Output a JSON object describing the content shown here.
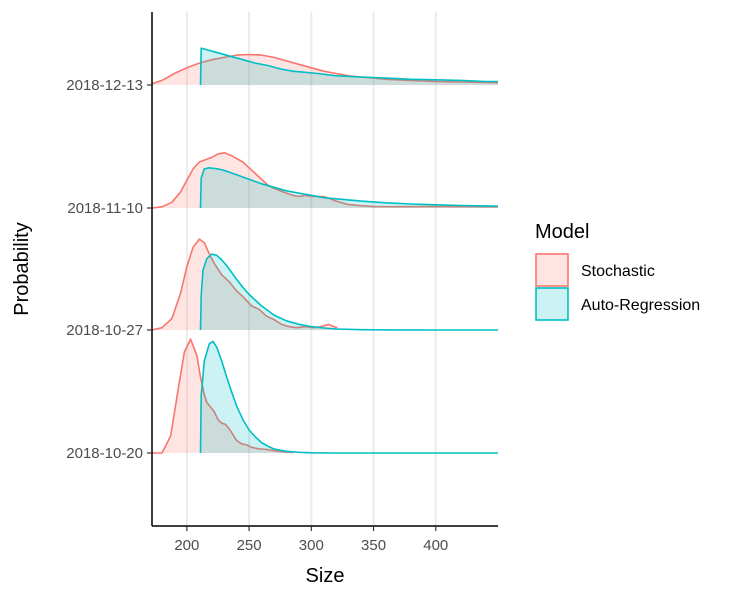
{
  "chart_data": {
    "type": "area",
    "subtype": "ridgeline-density",
    "xlabel": "Size",
    "ylabel": "Probability",
    "xlim": [
      172,
      450
    ],
    "x_ticks": [
      200,
      250,
      300,
      350,
      400
    ],
    "categories": [
      "2018-10-20",
      "2018-10-27",
      "2018-11-10",
      "2018-12-13"
    ],
    "grid": "vertical-major",
    "legend": {
      "title": "Model",
      "position": "right",
      "entries": [
        {
          "label": "Stochastic",
          "color": "#F8766D"
        },
        {
          "label": "Auto-Regression",
          "color": "#00BFC4"
        }
      ]
    },
    "series": [
      {
        "name": "Stochastic",
        "color": "#F8766D",
        "ridges": [
          {
            "category": "2018-10-20",
            "points": [
              [
                172,
                0
              ],
              [
                180,
                0
              ],
              [
                187,
                0.15
              ],
              [
                193,
                0.55
              ],
              [
                198,
                0.88
              ],
              [
                203,
                0.99
              ],
              [
                208,
                0.85
              ],
              [
                211,
                0.66
              ],
              [
                214,
                0.51
              ],
              [
                216,
                0.44
              ],
              [
                219,
                0.4
              ],
              [
                222,
                0.36
              ],
              [
                225,
                0.29
              ],
              [
                228,
                0.26
              ],
              [
                231,
                0.25
              ],
              [
                234,
                0.21
              ],
              [
                237,
                0.16
              ],
              [
                240,
                0.11
              ],
              [
                244,
                0.08
              ],
              [
                248,
                0.07
              ],
              [
                252,
                0.05
              ],
              [
                256,
                0.04
              ],
              [
                260,
                0.035
              ],
              [
                265,
                0.03
              ],
              [
                270,
                0.02
              ],
              [
                278,
                0.01
              ],
              [
                285,
                0.005
              ]
            ]
          },
          {
            "category": "2018-10-27",
            "points": [
              [
                172,
                0
              ],
              [
                180,
                0.02
              ],
              [
                188,
                0.1
              ],
              [
                195,
                0.32
              ],
              [
                200,
                0.55
              ],
              [
                205,
                0.72
              ],
              [
                210,
                0.79
              ],
              [
                214,
                0.76
              ],
              [
                218,
                0.66
              ],
              [
                222,
                0.58
              ],
              [
                228,
                0.48
              ],
              [
                234,
                0.42
              ],
              [
                240,
                0.34
              ],
              [
                246,
                0.28
              ],
              [
                252,
                0.21
              ],
              [
                258,
                0.18
              ],
              [
                264,
                0.12
              ],
              [
                270,
                0.09
              ],
              [
                276,
                0.05
              ],
              [
                282,
                0.03
              ],
              [
                288,
                0.02
              ],
              [
                295,
                0.03
              ],
              [
                302,
                0.02
              ],
              [
                308,
                0.03
              ],
              [
                314,
                0.05
              ],
              [
                318,
                0.03
              ],
              [
                321,
                0.02
              ]
            ]
          },
          {
            "category": "2018-11-10",
            "points": [
              [
                172,
                0
              ],
              [
                180,
                0.01
              ],
              [
                188,
                0.05
              ],
              [
                195,
                0.14
              ],
              [
                200,
                0.24
              ],
              [
                205,
                0.34
              ],
              [
                210,
                0.4
              ],
              [
                215,
                0.42
              ],
              [
                220,
                0.44
              ],
              [
                225,
                0.47
              ],
              [
                230,
                0.48
              ],
              [
                235,
                0.46
              ],
              [
                240,
                0.43
              ],
              [
                245,
                0.4
              ],
              [
                250,
                0.35
              ],
              [
                255,
                0.3
              ],
              [
                260,
                0.25
              ],
              [
                265,
                0.2
              ],
              [
                270,
                0.17
              ],
              [
                275,
                0.15
              ],
              [
                280,
                0.13
              ],
              [
                285,
                0.11
              ],
              [
                290,
                0.1
              ],
              [
                295,
                0.11
              ],
              [
                300,
                0.1
              ],
              [
                305,
                0.1
              ],
              [
                310,
                0.1
              ],
              [
                315,
                0.08
              ],
              [
                320,
                0.06
              ],
              [
                330,
                0.03
              ],
              [
                340,
                0.02
              ],
              [
                350,
                0.012
              ],
              [
                370,
                0.011
              ],
              [
                390,
                0.012
              ],
              [
                410,
                0.012
              ],
              [
                430,
                0.011
              ],
              [
                450,
                0.01
              ]
            ]
          },
          {
            "category": "2018-12-13",
            "points": [
              [
                172,
                0.01
              ],
              [
                180,
                0.04
              ],
              [
                190,
                0.1
              ],
              [
                200,
                0.15
              ],
              [
                210,
                0.19
              ],
              [
                220,
                0.22
              ],
              [
                230,
                0.24
              ],
              [
                240,
                0.26
              ],
              [
                250,
                0.265
              ],
              [
                260,
                0.26
              ],
              [
                270,
                0.24
              ],
              [
                280,
                0.21
              ],
              [
                290,
                0.18
              ],
              [
                300,
                0.15
              ],
              [
                310,
                0.12
              ],
              [
                320,
                0.1
              ],
              [
                330,
                0.08
              ],
              [
                340,
                0.07
              ],
              [
                350,
                0.06
              ],
              [
                360,
                0.05
              ],
              [
                370,
                0.045
              ],
              [
                380,
                0.04
              ],
              [
                390,
                0.035
              ],
              [
                400,
                0.03
              ],
              [
                410,
                0.028
              ],
              [
                420,
                0.026
              ],
              [
                430,
                0.024
              ],
              [
                440,
                0.022
              ],
              [
                450,
                0.02
              ]
            ]
          }
        ]
      },
      {
        "name": "Auto-Regression",
        "color": "#00BFC4",
        "ridges": [
          {
            "category": "2018-10-20",
            "points": [
              [
                211,
                0
              ],
              [
                211.5,
                0.5
              ],
              [
                214,
                0.8
              ],
              [
                218,
                0.95
              ],
              [
                221,
                0.97
              ],
              [
                224,
                0.92
              ],
              [
                228,
                0.8
              ],
              [
                232,
                0.66
              ],
              [
                236,
                0.53
              ],
              [
                240,
                0.41
              ],
              [
                245,
                0.29
              ],
              [
                250,
                0.2
              ],
              [
                255,
                0.14
              ],
              [
                260,
                0.09
              ],
              [
                265,
                0.06
              ],
              [
                270,
                0.035
              ],
              [
                280,
                0.015
              ],
              [
                290,
                0.006
              ],
              [
                300,
                0.002
              ],
              [
                320,
                0
              ],
              [
                450,
                0
              ]
            ]
          },
          {
            "category": "2018-10-27",
            "points": [
              [
                211,
                0
              ],
              [
                211.5,
                0.3
              ],
              [
                213,
                0.52
              ],
              [
                216,
                0.62
              ],
              [
                220,
                0.66
              ],
              [
                224,
                0.65
              ],
              [
                228,
                0.61
              ],
              [
                232,
                0.56
              ],
              [
                236,
                0.5
              ],
              [
                240,
                0.44
              ],
              [
                245,
                0.37
              ],
              [
                250,
                0.31
              ],
              [
                255,
                0.26
              ],
              [
                260,
                0.21
              ],
              [
                265,
                0.17
              ],
              [
                270,
                0.13
              ],
              [
                280,
                0.08
              ],
              [
                290,
                0.05
              ],
              [
                300,
                0.03
              ],
              [
                310,
                0.017
              ],
              [
                320,
                0.009
              ],
              [
                340,
                0.003
              ],
              [
                360,
                0.001
              ],
              [
                400,
                0
              ],
              [
                450,
                0
              ]
            ]
          },
          {
            "category": "2018-11-10",
            "points": [
              [
                211,
                0
              ],
              [
                211.5,
                0.26
              ],
              [
                214,
                0.34
              ],
              [
                218,
                0.35
              ],
              [
                225,
                0.34
              ],
              [
                232,
                0.32
              ],
              [
                240,
                0.29
              ],
              [
                250,
                0.25
              ],
              [
                260,
                0.21
              ],
              [
                270,
                0.18
              ],
              [
                280,
                0.15
              ],
              [
                290,
                0.13
              ],
              [
                300,
                0.11
              ],
              [
                310,
                0.09
              ],
              [
                320,
                0.08
              ],
              [
                340,
                0.06
              ],
              [
                360,
                0.045
              ],
              [
                380,
                0.035
              ],
              [
                400,
                0.028
              ],
              [
                420,
                0.022
              ],
              [
                440,
                0.018
              ],
              [
                450,
                0.016
              ]
            ]
          },
          {
            "category": "2018-12-13",
            "points": [
              [
                211,
                0
              ],
              [
                211.5,
                0.32
              ],
              [
                215,
                0.31
              ],
              [
                225,
                0.28
              ],
              [
                235,
                0.25
              ],
              [
                245,
                0.22
              ],
              [
                255,
                0.19
              ],
              [
                265,
                0.17
              ],
              [
                275,
                0.14
              ],
              [
                285,
                0.12
              ],
              [
                295,
                0.11
              ],
              [
                305,
                0.1
              ],
              [
                320,
                0.08
              ],
              [
                340,
                0.07
              ],
              [
                360,
                0.06
              ],
              [
                380,
                0.05
              ],
              [
                400,
                0.045
              ],
              [
                420,
                0.04
              ],
              [
                440,
                0.03
              ],
              [
                450,
                0.03
              ]
            ]
          }
        ]
      }
    ]
  }
}
